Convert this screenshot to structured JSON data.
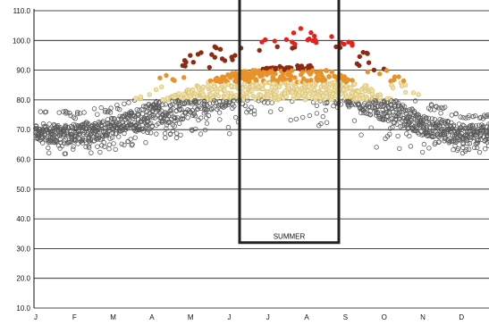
{
  "chart_data": {
    "type": "scatter",
    "title": "",
    "xlabel": "",
    "ylabel": "",
    "ylim": [
      10,
      110
    ],
    "y_ticks": [
      "10.0",
      "20.0",
      "30.0",
      "40.0",
      "50.0",
      "60.0",
      "70.0",
      "80.0",
      "90.0",
      "100.0",
      "110.0"
    ],
    "x_ticks": [
      "J",
      "F",
      "M",
      "A",
      "M",
      "J",
      "J",
      "A",
      "S",
      "O",
      "N",
      "D"
    ],
    "grid": true,
    "colors": {
      "gray": "#5a5a5a",
      "light_yellow": "#f2e3a4",
      "orange": "#e8922a",
      "dark_red": "#8e2a14",
      "red": "#e8201a"
    },
    "annotations": [
      {
        "label": "SUMMER",
        "x_range": [
          "J",
          "S"
        ],
        "y_range": [
          32,
          118
        ]
      }
    ],
    "envelope": {
      "months": [
        1,
        2,
        3,
        4,
        5,
        6,
        7,
        8,
        9,
        10,
        11,
        12
      ],
      "typical_high": [
        72,
        72,
        74,
        79,
        84,
        89,
        91,
        92,
        88,
        82,
        75,
        72
      ],
      "peak_high": [
        77,
        76,
        78,
        85,
        96,
        99,
        102,
        106,
        101,
        92,
        81,
        75
      ],
      "typical_low": [
        66,
        65,
        67,
        71,
        74,
        78,
        80,
        80,
        78,
        73,
        68,
        65
      ],
      "min_low": [
        62,
        61,
        63,
        66,
        68,
        68,
        73,
        72,
        69,
        62,
        62,
        62
      ]
    }
  }
}
